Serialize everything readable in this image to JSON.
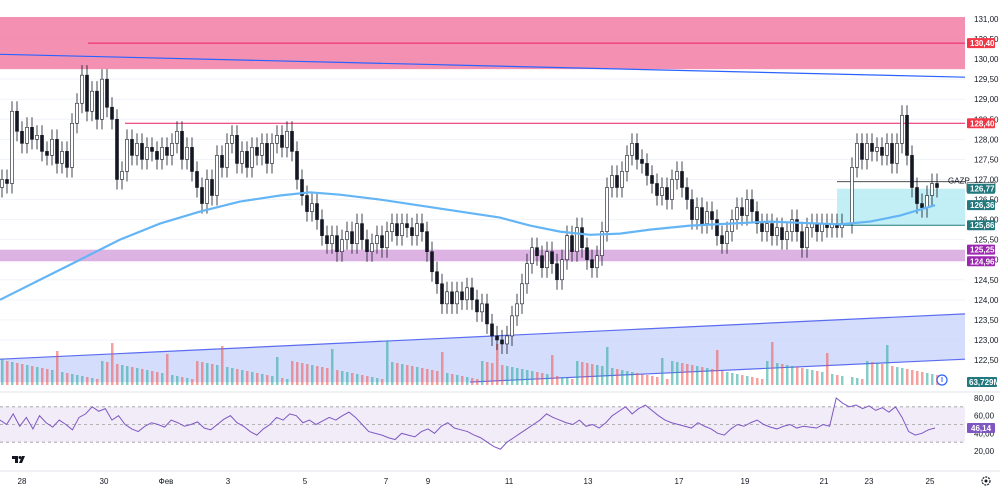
{
  "chart_data": {
    "type": "candlestick",
    "ticker": "GAZP",
    "price_axis": {
      "ylim": [
        122.0,
        131.25
      ],
      "ticks": [
        "131,00",
        "130,50",
        "130,00",
        "129,50",
        "129,00",
        "128,50",
        "128,00",
        "127,50",
        "127,00",
        "126,50",
        "126,00",
        "125,50",
        "125,00",
        "124,50",
        "124,00",
        "123,50",
        "123,00",
        "122,50"
      ]
    },
    "x_ticks": [
      "28",
      "30",
      "Фев",
      "3",
      "5",
      "7",
      "9",
      "11",
      "13",
      "17",
      "19",
      "21",
      "23",
      "25"
    ],
    "price_tags": [
      {
        "value": 130.4,
        "label": "130,40",
        "color": "#f23645"
      },
      {
        "value": 128.4,
        "label": "128,40",
        "color": "#f23645"
      },
      {
        "value": 126.8,
        "label": "126,80",
        "color": "#ffffff",
        "text_color": "#131722",
        "outlined": true
      },
      {
        "value": 126.77,
        "label": "126,77",
        "color": "#22787d"
      },
      {
        "value": 126.36,
        "label": "126,36",
        "color": "#22787d"
      },
      {
        "value": 125.86,
        "label": "125,86",
        "color": "#22787d"
      },
      {
        "value": 125.25,
        "label": "125,25",
        "color": "#9c27b0"
      },
      {
        "value": 124.96,
        "label": "124,96",
        "color": "#9c27b0"
      }
    ],
    "volume_tag": {
      "label": "63,729M"
    },
    "zones": [
      {
        "name": "resistance-zone",
        "from": 129.75,
        "to": 131.05,
        "color": "#f06292"
      },
      {
        "name": "support-zone",
        "from": 124.96,
        "to": 125.25,
        "color": "#ce93d8"
      }
    ],
    "hlines": [
      {
        "name": "level-130-40",
        "value": 130.4,
        "color": "#e91e63"
      },
      {
        "name": "level-128-40",
        "value": 128.4,
        "color": "#e91e63"
      }
    ],
    "trendline": {
      "x1": 0,
      "y1": 130.12,
      "x2": 965,
      "y2": 129.55,
      "color": "#2962ff"
    },
    "channel": {
      "upper": [
        [
          0,
          122.52
        ],
        [
          965,
          123.65
        ]
      ],
      "lower": [
        [
          470,
          121.95
        ],
        [
          965,
          122.52
        ]
      ],
      "color": "#5b6cf0"
    },
    "box": {
      "x1": 837,
      "x2": 965,
      "top": 126.77,
      "bottom": 125.86,
      "color": "#7ee8f0"
    },
    "ma_curve": [
      [
        0,
        124.0
      ],
      [
        40,
        124.5
      ],
      [
        80,
        125.0
      ],
      [
        120,
        125.5
      ],
      [
        160,
        125.9
      ],
      [
        200,
        126.2
      ],
      [
        240,
        126.45
      ],
      [
        280,
        126.6
      ],
      [
        310,
        126.68
      ],
      [
        340,
        126.62
      ],
      [
        380,
        126.5
      ],
      [
        420,
        126.35
      ],
      [
        460,
        126.2
      ],
      [
        500,
        126.05
      ],
      [
        530,
        125.85
      ],
      [
        560,
        125.7
      ],
      [
        590,
        125.62
      ],
      [
        620,
        125.65
      ],
      [
        650,
        125.75
      ],
      [
        690,
        125.85
      ],
      [
        730,
        125.9
      ],
      [
        770,
        125.95
      ],
      [
        800,
        125.92
      ],
      [
        840,
        125.88
      ],
      [
        870,
        125.95
      ],
      [
        900,
        126.1
      ],
      [
        935,
        126.36
      ]
    ],
    "candles_close": [
      [
        0,
        127.0
      ],
      [
        5,
        126.9
      ],
      [
        10,
        128.7
      ],
      [
        15,
        128.2
      ],
      [
        20,
        127.9
      ],
      [
        25,
        128.3
      ],
      [
        30,
        128.0
      ],
      [
        35,
        128.1
      ],
      [
        40,
        127.7
      ],
      [
        45,
        127.6
      ],
      [
        50,
        128.0
      ],
      [
        55,
        127.4
      ],
      [
        60,
        127.7
      ],
      [
        65,
        127.3
      ],
      [
        70,
        128.4
      ],
      [
        75,
        128.9
      ],
      [
        80,
        129.6
      ],
      [
        85,
        128.7
      ],
      [
        90,
        129.2
      ],
      [
        95,
        128.5
      ],
      [
        100,
        129.5
      ],
      [
        105,
        128.8
      ],
      [
        110,
        128.5
      ],
      [
        115,
        127.0
      ],
      [
        120,
        127.2
      ],
      [
        125,
        128.0
      ],
      [
        130,
        127.6
      ],
      [
        135,
        127.9
      ],
      [
        140,
        127.5
      ],
      [
        145,
        127.8
      ],
      [
        150,
        127.7
      ],
      [
        155,
        127.5
      ],
      [
        160,
        127.8
      ],
      [
        165,
        127.6
      ],
      [
        170,
        127.9
      ],
      [
        175,
        128.2
      ],
      [
        180,
        127.5
      ],
      [
        185,
        127.8
      ],
      [
        190,
        127.2
      ],
      [
        195,
        126.8
      ],
      [
        200,
        126.4
      ],
      [
        205,
        127.0
      ],
      [
        210,
        126.6
      ],
      [
        215,
        127.6
      ],
      [
        220,
        127.3
      ],
      [
        225,
        127.9
      ],
      [
        230,
        128.1
      ],
      [
        235,
        127.4
      ],
      [
        240,
        127.7
      ],
      [
        245,
        127.3
      ],
      [
        250,
        127.8
      ],
      [
        255,
        127.6
      ],
      [
        260,
        127.9
      ],
      [
        265,
        127.4
      ],
      [
        270,
        127.9
      ],
      [
        275,
        128.1
      ],
      [
        280,
        127.8
      ],
      [
        285,
        128.2
      ],
      [
        290,
        127.7
      ],
      [
        295,
        127.0
      ],
      [
        300,
        126.6
      ],
      [
        305,
        126.2
      ],
      [
        310,
        126.4
      ],
      [
        315,
        126.0
      ],
      [
        320,
        125.6
      ],
      [
        325,
        125.4
      ],
      [
        330,
        125.6
      ],
      [
        335,
        125.2
      ],
      [
        340,
        125.5
      ],
      [
        345,
        125.7
      ],
      [
        350,
        125.4
      ],
      [
        355,
        125.9
      ],
      [
        360,
        125.5
      ],
      [
        365,
        125.2
      ],
      [
        370,
        125.4
      ],
      [
        375,
        125.6
      ],
      [
        380,
        125.3
      ],
      [
        385,
        125.7
      ],
      [
        390,
        125.9
      ],
      [
        395,
        125.6
      ],
      [
        400,
        125.9
      ],
      [
        405,
        125.8
      ],
      [
        410,
        125.6
      ],
      [
        415,
        125.9
      ],
      [
        420,
        125.7
      ],
      [
        425,
        125.2
      ],
      [
        430,
        124.7
      ],
      [
        435,
        124.4
      ],
      [
        440,
        123.9
      ],
      [
        445,
        124.2
      ],
      [
        450,
        123.9
      ],
      [
        455,
        124.2
      ],
      [
        460,
        124.0
      ],
      [
        465,
        124.3
      ],
      [
        470,
        124.0
      ],
      [
        475,
        123.7
      ],
      [
        480,
        123.9
      ],
      [
        485,
        123.4
      ],
      [
        490,
        123.1
      ],
      [
        495,
        123.0
      ],
      [
        500,
        122.9
      ],
      [
        505,
        123.1
      ],
      [
        510,
        123.6
      ],
      [
        515,
        123.9
      ],
      [
        520,
        124.4
      ],
      [
        525,
        124.9
      ],
      [
        530,
        125.3
      ],
      [
        535,
        125.1
      ],
      [
        540,
        124.8
      ],
      [
        545,
        125.2
      ],
      [
        550,
        124.9
      ],
      [
        555,
        124.5
      ],
      [
        560,
        125.0
      ],
      [
        565,
        125.6
      ],
      [
        570,
        125.2
      ],
      [
        575,
        125.8
      ],
      [
        580,
        125.3
      ],
      [
        585,
        125.0
      ],
      [
        590,
        124.8
      ],
      [
        595,
        125.1
      ],
      [
        600,
        125.7
      ],
      [
        605,
        126.8
      ],
      [
        610,
        127.1
      ],
      [
        615,
        126.8
      ],
      [
        620,
        127.2
      ],
      [
        625,
        127.6
      ],
      [
        630,
        127.9
      ],
      [
        635,
        127.5
      ],
      [
        640,
        127.4
      ],
      [
        645,
        127.1
      ],
      [
        650,
        126.9
      ],
      [
        655,
        126.6
      ],
      [
        660,
        126.8
      ],
      [
        665,
        126.5
      ],
      [
        670,
        127.0
      ],
      [
        675,
        127.2
      ],
      [
        680,
        126.8
      ],
      [
        685,
        126.5
      ],
      [
        690,
        126.0
      ],
      [
        695,
        126.3
      ],
      [
        700,
        125.9
      ],
      [
        705,
        126.2
      ],
      [
        710,
        126.0
      ],
      [
        715,
        125.6
      ],
      [
        720,
        125.4
      ],
      [
        725,
        125.7
      ],
      [
        730,
        126.0
      ],
      [
        735,
        126.3
      ],
      [
        740,
        126.1
      ],
      [
        745,
        126.5
      ],
      [
        750,
        126.2
      ],
      [
        755,
        125.9
      ],
      [
        760,
        125.7
      ],
      [
        765,
        125.9
      ],
      [
        770,
        125.6
      ],
      [
        775,
        125.8
      ],
      [
        780,
        125.5
      ],
      [
        785,
        125.7
      ],
      [
        790,
        126.0
      ],
      [
        795,
        125.7
      ],
      [
        800,
        125.3
      ],
      [
        805,
        125.8
      ],
      [
        810,
        125.9
      ],
      [
        815,
        125.7
      ],
      [
        820,
        125.9
      ],
      [
        825,
        125.8
      ],
      [
        830,
        125.9
      ],
      [
        835,
        125.8
      ],
      [
        840,
        125.9
      ],
      [
        850,
        127.3
      ],
      [
        855,
        127.9
      ],
      [
        860,
        127.5
      ],
      [
        865,
        127.9
      ],
      [
        870,
        127.7
      ],
      [
        875,
        127.8
      ],
      [
        880,
        127.6
      ],
      [
        885,
        127.9
      ],
      [
        890,
        127.4
      ],
      [
        895,
        127.9
      ],
      [
        900,
        128.6
      ],
      [
        905,
        127.6
      ],
      [
        910,
        126.8
      ],
      [
        915,
        126.4
      ],
      [
        920,
        126.3
      ],
      [
        925,
        126.6
      ],
      [
        930,
        126.9
      ],
      [
        935,
        126.8
      ]
    ],
    "rsi": {
      "ticks": [
        "80,00",
        "60,00",
        "40,00",
        "20,00"
      ],
      "upper": 70,
      "lower": 30,
      "value_label": "46,14",
      "values": [
        55,
        50,
        62,
        48,
        58,
        45,
        60,
        52,
        47,
        55,
        50,
        44,
        58,
        62,
        70,
        65,
        68,
        55,
        60,
        50,
        45,
        42,
        48,
        52,
        50,
        47,
        55,
        52,
        48,
        50,
        53,
        46,
        44,
        50,
        56,
        60,
        52,
        48,
        42,
        38,
        45,
        50,
        58,
        55,
        62,
        60,
        52,
        55,
        50,
        54,
        58,
        55,
        60,
        64,
        58,
        50,
        42,
        40,
        38,
        35,
        33,
        40,
        38,
        36,
        42,
        45,
        40,
        48,
        52,
        46,
        44,
        42,
        38,
        35,
        30,
        25,
        22,
        30,
        35,
        40,
        45,
        50,
        55,
        62,
        58,
        55,
        52,
        50,
        55,
        48,
        50,
        46,
        52,
        60,
        65,
        70,
        62,
        68,
        72,
        66,
        60,
        55,
        52,
        50,
        48,
        46,
        52,
        48,
        45,
        40,
        38,
        45,
        50,
        48,
        52,
        55,
        50,
        47,
        45,
        48,
        50,
        46,
        48,
        47,
        46,
        50,
        48,
        80,
        74,
        70,
        72,
        68,
        71,
        66,
        69,
        64,
        70,
        58,
        42,
        38,
        40,
        44,
        46
      ],
      "x_start": 0,
      "x_end": 935
    },
    "icons": [
      "tradingview-logo-icon",
      "settings-gear-icon",
      "alert-icon"
    ]
  }
}
